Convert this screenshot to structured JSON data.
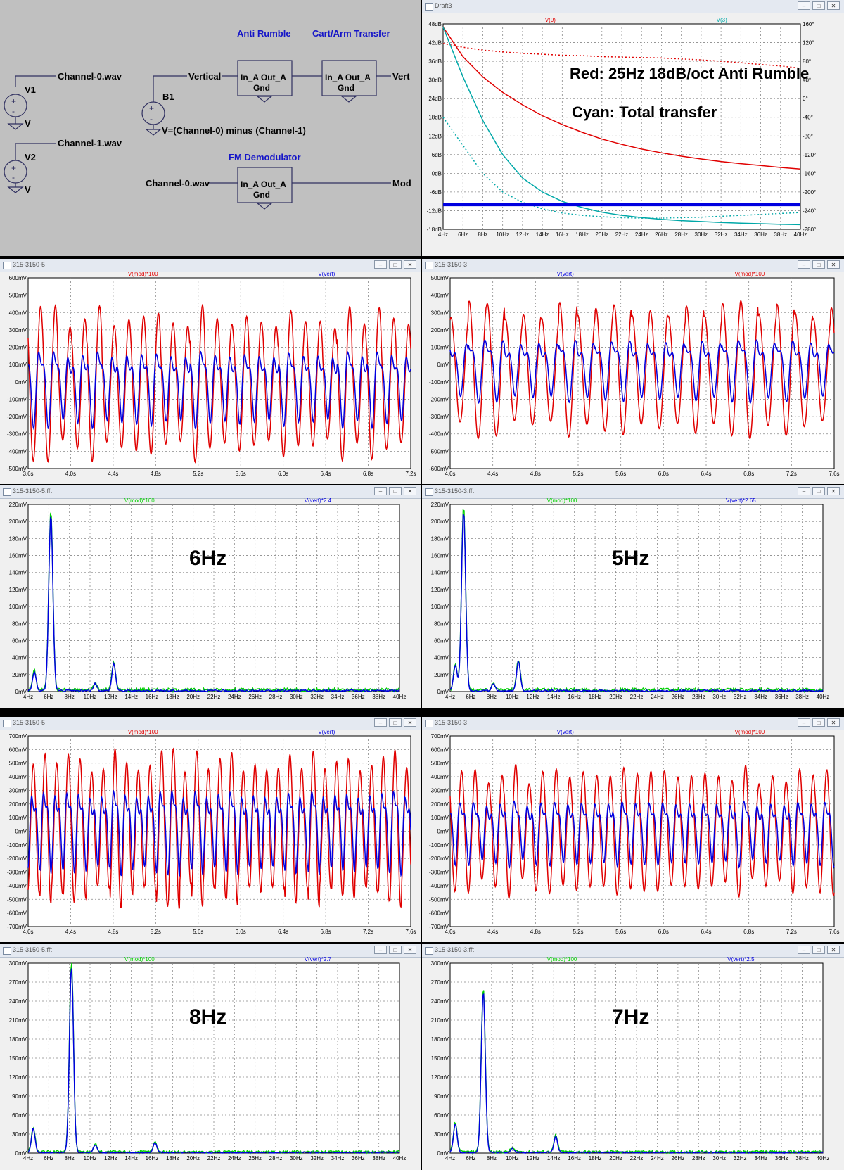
{
  "schematic": {
    "labels": {
      "channel0_top": "Channel-0.wav",
      "v1": "V1",
      "v1_value": "V",
      "channel1": "Channel-1.wav",
      "v2": "V2",
      "v2_value": "V",
      "vertical": "Vertical",
      "b1": "B1",
      "b1_expr": "V=(Channel-0) minus (Channel-1)",
      "anti_rumble": "Anti Rumble",
      "cart_arm": "Cart/Arm Transfer",
      "fm_demod": "FM Demodulator",
      "block_in_out": "In_A Out_A",
      "block_gnd": "Gnd",
      "vert_out": "Vert",
      "channel0_mod": "Channel-0.wav",
      "mod_out": "Mod"
    }
  },
  "windows": {
    "bode": {
      "title": "Draft3"
    },
    "w1": {
      "title": "315-3150-5"
    },
    "w2": {
      "title": "315-3150-3"
    },
    "w3": {
      "title": "315-3150-5.fft"
    },
    "w4": {
      "title": "315-3150-3.fft"
    },
    "w5": {
      "title": "315-3150-5"
    },
    "w6": {
      "title": "315-3150-3"
    },
    "w7": {
      "title": "315-3150-5.fft"
    },
    "w8": {
      "title": "315-3150-3.fft"
    }
  },
  "colors": {
    "red": "#e00000",
    "blue": "#0000e0",
    "green": "#00d000",
    "cyan": "#00a8a8",
    "grid": "#888888"
  },
  "chart_data": [
    {
      "id": "bode",
      "type": "line",
      "annotations": [
        "Red: 25Hz 18dB/oct Anti Rumble",
        "Cyan: Total transfer"
      ],
      "legend": [
        {
          "name": "V(9)",
          "color": "red"
        },
        {
          "name": "V(3)",
          "color": "cyan"
        }
      ],
      "x": [
        4,
        6,
        8,
        10,
        12,
        14,
        16,
        18,
        20,
        22,
        24,
        26,
        28,
        30,
        32,
        34,
        36,
        38,
        40
      ],
      "xticks": [
        "4Hz",
        "6Hz",
        "8Hz",
        "10Hz",
        "12Hz",
        "14Hz",
        "16Hz",
        "18Hz",
        "20Hz",
        "22Hz",
        "24Hz",
        "26Hz",
        "28Hz",
        "30Hz",
        "32Hz",
        "34Hz",
        "36Hz",
        "38Hz",
        "40Hz"
      ],
      "yticks_left": [
        "48dB",
        "42dB",
        "36dB",
        "30dB",
        "24dB",
        "18dB",
        "12dB",
        "6dB",
        "0dB",
        "-6dB",
        "-12dB",
        "-18dB"
      ],
      "yticks_right": [
        "160°",
        "120°",
        "80°",
        "40°",
        "0°",
        "-40°",
        "-80°",
        "-120°",
        "-160°",
        "-200°",
        "-240°",
        "-280°"
      ],
      "ylim_db": [
        -18,
        48
      ],
      "ylim_deg": [
        -280,
        160
      ],
      "series": [
        {
          "color": "red",
          "style": "solid",
          "values_db": [
            47,
            37.5,
            31,
            26,
            22,
            18.5,
            15.7,
            13.2,
            11,
            9.3,
            7.8,
            6.6,
            5.5,
            4.6,
            3.8,
            3.1,
            2.5,
            1.9,
            1.4
          ]
        },
        {
          "color": "red",
          "style": "dotted",
          "values_deg": [
            118,
            110,
            104,
            100,
            97,
            95,
            93,
            92,
            90,
            89,
            88,
            87,
            85,
            83,
            80,
            77,
            73,
            70,
            65
          ]
        },
        {
          "color": "cyan",
          "style": "solid",
          "values_db": [
            47,
            31,
            17,
            6,
            -1.5,
            -6,
            -9,
            -11,
            -12.5,
            -13.5,
            -14.2,
            -14.8,
            -15.2,
            -15.5,
            -15.8,
            -16,
            -16.2,
            -16.4,
            -16.5
          ]
        },
        {
          "color": "cyan",
          "style": "dotted",
          "values_deg": [
            -40,
            -100,
            -160,
            -200,
            -222,
            -236,
            -245,
            -250,
            -253,
            -255,
            -256,
            -256,
            -255,
            -254,
            -252,
            -250,
            -248,
            -246,
            -244
          ]
        },
        {
          "color": "blue",
          "style": "thick",
          "values_db": [
            -10,
            -10
          ]
        }
      ]
    },
    {
      "id": "w1",
      "type": "line",
      "legend": [
        {
          "name": "V(mod)*100",
          "color": "red"
        },
        {
          "name": "V(vert)",
          "color": "blue"
        }
      ],
      "yticks": [
        "600mV",
        "500mV",
        "400mV",
        "300mV",
        "200mV",
        "100mV",
        "0mV",
        "-100mV",
        "-200mV",
        "-300mV",
        "-400mV",
        "-500mV"
      ],
      "ylim": [
        -500,
        600
      ],
      "xticks": [
        "3.6s",
        "4.0s",
        "4.4s",
        "4.8s",
        "5.2s",
        "5.6s",
        "6.0s",
        "6.4s",
        "6.8s",
        "7.2s"
      ],
      "xlim": [
        3.6,
        7.6
      ],
      "series": [
        {
          "color": "red",
          "freq": 6.5,
          "amp": 420,
          "offset": -10
        },
        {
          "color": "blue",
          "freq": 6.5,
          "amp": 180,
          "offset": 0,
          "harm": 2
        }
      ]
    },
    {
      "id": "w2",
      "type": "line",
      "legend": [
        {
          "name": "V(vert)",
          "color": "blue"
        },
        {
          "name": "V(mod)*100",
          "color": "red"
        }
      ],
      "yticks": [
        "500mV",
        "400mV",
        "300mV",
        "200mV",
        "100mV",
        "0mV",
        "-100mV",
        "-200mV",
        "-300mV",
        "-400mV",
        "-500mV",
        "-600mV"
      ],
      "ylim": [
        -600,
        500
      ],
      "xticks": [
        "4.0s",
        "4.4s",
        "4.8s",
        "5.2s",
        "5.6s",
        "6.0s",
        "6.4s",
        "6.8s",
        "7.2s",
        "7.6s"
      ],
      "xlim": [
        4.0,
        8.0
      ],
      "series": [
        {
          "color": "red",
          "freq": 5.3,
          "amp": 380,
          "offset": -30
        },
        {
          "color": "blue",
          "freq": 5.3,
          "amp": 150,
          "offset": 0,
          "harm": 2
        }
      ]
    },
    {
      "id": "w3",
      "type": "line",
      "label": "6Hz",
      "legend": [
        {
          "name": "V(mod)*100",
          "color": "green"
        },
        {
          "name": "V(vert)*2.4",
          "color": "blue"
        }
      ],
      "yticks": [
        "220mV",
        "200mV",
        "180mV",
        "160mV",
        "140mV",
        "120mV",
        "100mV",
        "80mV",
        "60mV",
        "40mV",
        "20mV",
        "0mV"
      ],
      "ylim": [
        0,
        220
      ],
      "xticks": [
        "4Hz",
        "6Hz",
        "8Hz",
        "10Hz",
        "12Hz",
        "14Hz",
        "16Hz",
        "18Hz",
        "20Hz",
        "22Hz",
        "24Hz",
        "26Hz",
        "28Hz",
        "30Hz",
        "32Hz",
        "34Hz",
        "36Hz",
        "38Hz",
        "40Hz"
      ],
      "xlim": [
        4,
        40
      ],
      "peaks": [
        {
          "x": 6.2,
          "y": 208
        },
        {
          "x": 4.6,
          "y": 22
        },
        {
          "x": 12.3,
          "y": 32
        },
        {
          "x": 10.5,
          "y": 8
        }
      ]
    },
    {
      "id": "w4",
      "type": "line",
      "label": "5Hz",
      "legend": [
        {
          "name": "V(mod)*100",
          "color": "green"
        },
        {
          "name": "V(vert)*2.65",
          "color": "blue"
        }
      ],
      "yticks": [
        "220mV",
        "200mV",
        "180mV",
        "160mV",
        "140mV",
        "120mV",
        "100mV",
        "80mV",
        "60mV",
        "40mV",
        "20mV",
        "0mV"
      ],
      "ylim": [
        0,
        220
      ],
      "xticks": [
        "4Hz",
        "6Hz",
        "8Hz",
        "10Hz",
        "12Hz",
        "14Hz",
        "16Hz",
        "18Hz",
        "20Hz",
        "22Hz",
        "24Hz",
        "26Hz",
        "28Hz",
        "30Hz",
        "32Hz",
        "34Hz",
        "36Hz",
        "38Hz",
        "40Hz"
      ],
      "xlim": [
        4,
        40
      ],
      "peaks": [
        {
          "x": 5.3,
          "y": 212
        },
        {
          "x": 4.5,
          "y": 30
        },
        {
          "x": 10.6,
          "y": 35
        },
        {
          "x": 8.2,
          "y": 8
        }
      ]
    },
    {
      "id": "w5",
      "type": "line",
      "legend": [
        {
          "name": "V(mod)*100",
          "color": "red"
        },
        {
          "name": "V(vert)",
          "color": "blue"
        }
      ],
      "yticks": [
        "700mV",
        "600mV",
        "500mV",
        "400mV",
        "300mV",
        "200mV",
        "100mV",
        "0mV",
        "-100mV",
        "-200mV",
        "-300mV",
        "-400mV",
        "-500mV",
        "-600mV",
        "-700mV"
      ],
      "ylim": [
        -700,
        700
      ],
      "xticks": [
        "4.0s",
        "4.4s",
        "4.8s",
        "5.2s",
        "5.6s",
        "6.0s",
        "6.4s",
        "6.8s",
        "7.2s",
        "7.6s"
      ],
      "xlim": [
        4.0,
        8.0
      ],
      "series": [
        {
          "color": "red",
          "freq": 8.2,
          "amp": 540,
          "offset": 20
        },
        {
          "color": "blue",
          "freq": 8.2,
          "amp": 250,
          "offset": 50,
          "harm": 2
        }
      ]
    },
    {
      "id": "w6",
      "type": "line",
      "legend": [
        {
          "name": "V(vert)",
          "color": "blue"
        },
        {
          "name": "V(mod)*100",
          "color": "red"
        }
      ],
      "yticks": [
        "700mV",
        "600mV",
        "500mV",
        "400mV",
        "300mV",
        "200mV",
        "100mV",
        "0mV",
        "-100mV",
        "-200mV",
        "-300mV",
        "-400mV",
        "-500mV",
        "-600mV",
        "-700mV"
      ],
      "ylim": [
        -700,
        700
      ],
      "xticks": [
        "4.0s",
        "4.4s",
        "4.8s",
        "5.2s",
        "5.6s",
        "6.0s",
        "6.4s",
        "6.8s",
        "7.2s",
        "7.6s"
      ],
      "xlim": [
        4.0,
        8.0
      ],
      "series": [
        {
          "color": "red",
          "freq": 7.1,
          "amp": 460,
          "offset": 0
        },
        {
          "color": "blue",
          "freq": 7.1,
          "amp": 200,
          "offset": 30,
          "harm": 2
        }
      ]
    },
    {
      "id": "w7",
      "type": "line",
      "label": "8Hz",
      "legend": [
        {
          "name": "V(mod)*100",
          "color": "green"
        },
        {
          "name": "V(vert)*2.7",
          "color": "blue"
        }
      ],
      "yticks": [
        "300mV",
        "270mV",
        "240mV",
        "210mV",
        "180mV",
        "150mV",
        "120mV",
        "90mV",
        "60mV",
        "30mV",
        "0mV"
      ],
      "ylim": [
        0,
        300
      ],
      "xticks": [
        "4Hz",
        "6Hz",
        "8Hz",
        "10Hz",
        "12Hz",
        "14Hz",
        "16Hz",
        "18Hz",
        "20Hz",
        "22Hz",
        "24Hz",
        "26Hz",
        "28Hz",
        "30Hz",
        "32Hz",
        "34Hz",
        "36Hz",
        "38Hz",
        "40Hz"
      ],
      "xlim": [
        4,
        40
      ],
      "peaks": [
        {
          "x": 8.2,
          "y": 295
        },
        {
          "x": 4.5,
          "y": 38
        },
        {
          "x": 16.3,
          "y": 15
        },
        {
          "x": 10.5,
          "y": 12
        }
      ]
    },
    {
      "id": "w8",
      "type": "line",
      "label": "7Hz",
      "legend": [
        {
          "name": "V(mod)*100",
          "color": "green"
        },
        {
          "name": "V(vert)*2.5",
          "color": "blue"
        }
      ],
      "yticks": [
        "300mV",
        "270mV",
        "240mV",
        "210mV",
        "180mV",
        "150mV",
        "120mV",
        "90mV",
        "60mV",
        "30mV",
        "0mV"
      ],
      "ylim": [
        0,
        300
      ],
      "xticks": [
        "4Hz",
        "6Hz",
        "8Hz",
        "10Hz",
        "12Hz",
        "14Hz",
        "16Hz",
        "18Hz",
        "20Hz",
        "22Hz",
        "24Hz",
        "26Hz",
        "28Hz",
        "30Hz",
        "32Hz",
        "34Hz",
        "36Hz",
        "38Hz",
        "40Hz"
      ],
      "xlim": [
        4,
        40
      ],
      "peaks": [
        {
          "x": 7.2,
          "y": 255
        },
        {
          "x": 4.5,
          "y": 45
        },
        {
          "x": 14.2,
          "y": 25
        },
        {
          "x": 10.0,
          "y": 6
        }
      ]
    }
  ]
}
